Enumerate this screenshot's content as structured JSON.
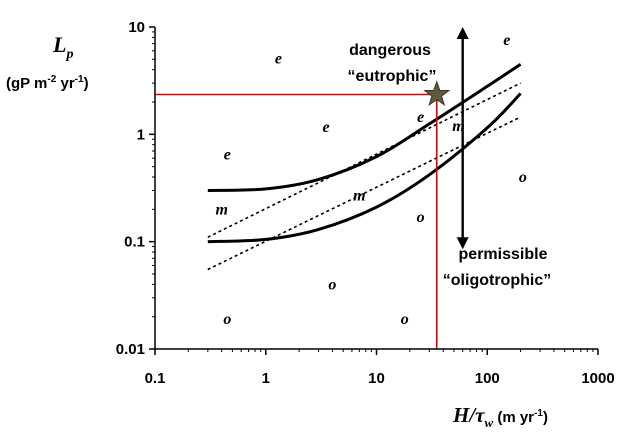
{
  "chart_data": {
    "type": "line",
    "xscale": "log",
    "yscale": "log",
    "xlim": [
      0.1,
      1000
    ],
    "ylim": [
      0.01,
      10
    ],
    "x_ticks": [
      "0.1",
      "1",
      "10",
      "100",
      "1000"
    ],
    "y_ticks": [
      "0.01",
      "0.1",
      "1",
      "10"
    ],
    "ylabel": {
      "main": "L",
      "sub": "p",
      "unit_pre": "(gP m",
      "unit_sup1": "-2",
      "unit_mid": " yr",
      "unit_sup2": "-1",
      "unit_post": ")"
    },
    "xlabel": {
      "main": "H/τ",
      "sub": "w",
      "unit_pre": " (m yr",
      "unit_sup": "-1",
      "unit_post": ")"
    },
    "curves": [
      {
        "style": "solid",
        "x": [
          0.3,
          1,
          3,
          10,
          30,
          100,
          200
        ],
        "y": [
          0.3,
          0.31,
          0.38,
          0.62,
          1.25,
          2.8,
          4.5
        ]
      },
      {
        "style": "solid",
        "x": [
          0.3,
          1,
          3,
          10,
          30,
          100,
          200
        ],
        "y": [
          0.1,
          0.105,
          0.13,
          0.21,
          0.42,
          1.15,
          2.4
        ]
      },
      {
        "style": "dotted",
        "x": [
          0.3,
          200
        ],
        "y": [
          0.11,
          3.0
        ]
      },
      {
        "style": "dotted",
        "x": [
          0.3,
          200
        ],
        "y": [
          0.055,
          1.45
        ]
      }
    ],
    "points": [
      {
        "label": "e",
        "x": 1.3,
        "y": 5.1
      },
      {
        "label": "e",
        "x": 150,
        "y": 7.6
      },
      {
        "label": "e",
        "x": 3.5,
        "y": 1.17
      },
      {
        "label": "e",
        "x": 25,
        "y": 1.45
      },
      {
        "label": "e",
        "x": 0.45,
        "y": 0.65
      },
      {
        "label": "m",
        "x": 0.4,
        "y": 0.2
      },
      {
        "label": "m",
        "x": 7,
        "y": 0.27
      },
      {
        "label": "m",
        "x": 55,
        "y": 1.2
      },
      {
        "label": "o",
        "x": 25,
        "y": 0.17
      },
      {
        "label": "o",
        "x": 210,
        "y": 0.4
      },
      {
        "label": "o",
        "x": 4,
        "y": 0.04
      },
      {
        "label": "o",
        "x": 0.45,
        "y": 0.019
      },
      {
        "label": "o",
        "x": 18,
        "y": 0.019
      }
    ],
    "reference": {
      "x": 35,
      "y": 2.35,
      "color": "#e00000"
    },
    "star": {
      "x": 35,
      "y": 2.35,
      "color": "#5e5a3a"
    },
    "arrow": {
      "x": 60,
      "y_top": 10,
      "y_bottom": 0.085
    },
    "annotations": {
      "upper_1": "dangerous",
      "upper_2": "“eutrophic”",
      "lower_1": "permissible",
      "lower_2": "“oligotrophic”"
    }
  }
}
